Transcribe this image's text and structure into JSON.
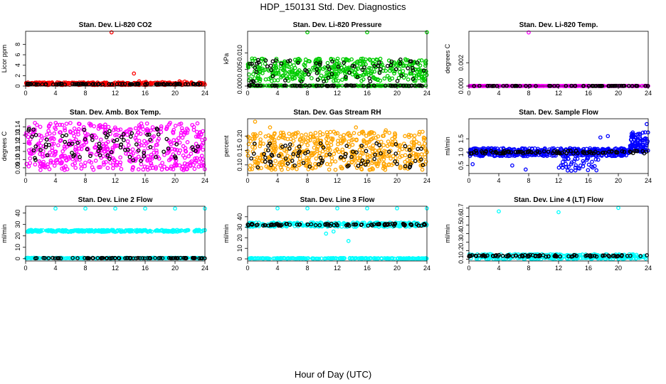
{
  "figure": {
    "title": "HDP_150131  Std. Dev. Diagnostics",
    "xlabel": "Hour of Day (UTC)"
  },
  "chart_data": [
    {
      "type": "scatter",
      "title": "Stan. Dev. Li-820 CO2",
      "ylabel": "Licor ppm",
      "xlim": [
        0,
        24
      ],
      "ylim": [
        0,
        10.5
      ],
      "xticks": [
        0,
        4,
        8,
        12,
        16,
        20,
        24
      ],
      "yticks": [
        0,
        2,
        4,
        6,
        8
      ],
      "ytick_labels": [
        "0",
        "2",
        "4",
        "6",
        "8"
      ],
      "color": "#ff0000",
      "series": [
        {
          "name": "main",
          "pattern": "band",
          "x": [
            0,
            24
          ],
          "y_range": [
            0.2,
            0.7
          ],
          "count": 320
        },
        {
          "name": "outliers",
          "pattern": "points",
          "x": [
            11.5,
            14.5,
            15.2,
            16.1,
            18.3,
            20.6,
            21.3,
            22.2
          ],
          "y": [
            10.3,
            2.4,
            0.9,
            0.8,
            0.75,
            0.9,
            0.85,
            0.7
          ]
        },
        {
          "name": "reference",
          "pattern": "band",
          "x": [
            0,
            24
          ],
          "y_range": [
            0.3,
            0.45
          ],
          "count": 90,
          "color": "#000000"
        }
      ]
    },
    {
      "type": "scatter",
      "title": "Stan. Dev. Li-820 Pressure",
      "ylabel": "kPa",
      "xlim": [
        0,
        24
      ],
      "ylim": [
        0,
        0.0165
      ],
      "xticks": [
        0,
        4,
        8,
        12,
        16,
        20,
        24
      ],
      "yticks": [
        0,
        0.005,
        0.01
      ],
      "ytick_labels": [
        "0.000",
        "0.005",
        "0.010"
      ],
      "color": "#00cc00",
      "series": [
        {
          "name": "baseline",
          "pattern": "band",
          "x": [
            0,
            24
          ],
          "y_range": [
            0,
            0.0002
          ],
          "count": 160
        },
        {
          "name": "main",
          "pattern": "band",
          "x": [
            0,
            24
          ],
          "y_range": [
            0.0015,
            0.0083
          ],
          "count": 420
        },
        {
          "name": "outliers",
          "pattern": "points",
          "x": [
            8.0,
            16.0,
            24.0
          ],
          "y": [
            0.0162,
            0.0162,
            0.0162
          ]
        },
        {
          "name": "reference",
          "pattern": "band",
          "x": [
            0,
            24
          ],
          "y_range": [
            0.0012,
            0.008
          ],
          "count": 70,
          "color": "#000000"
        },
        {
          "name": "reference-base",
          "pattern": "band",
          "x": [
            0,
            24
          ],
          "y_range": [
            0,
            0.0002
          ],
          "count": 60,
          "color": "#000000"
        }
      ]
    },
    {
      "type": "scatter",
      "title": "Stan. Dev. Li-820 Temp.",
      "ylabel": "degrees C",
      "xlim": [
        0,
        24
      ],
      "ylim": [
        0,
        0.0047
      ],
      "xticks": [
        0,
        4,
        8,
        12,
        16,
        20,
        24
      ],
      "yticks": [
        0,
        0.002
      ],
      "ytick_labels": [
        "0.000",
        "0.002"
      ],
      "color": "#ff00ff",
      "series": [
        {
          "name": "baseline",
          "pattern": "band",
          "x": [
            0,
            24
          ],
          "y_range": [
            0,
            2e-05
          ],
          "count": 300
        },
        {
          "name": "outliers",
          "pattern": "points",
          "x": [
            8.0
          ],
          "y": [
            0.0046
          ]
        },
        {
          "name": "reference",
          "pattern": "band",
          "x": [
            0,
            24
          ],
          "y_range": [
            0,
            2e-05
          ],
          "count": 60,
          "color": "#000000"
        }
      ]
    },
    {
      "type": "scatter",
      "title": "Stan. Dev. Amb. Box Temp.",
      "ylabel": "degrees C",
      "xlim": [
        0,
        24
      ],
      "ylim": [
        0.083,
        0.15
      ],
      "xticks": [
        0,
        4,
        8,
        12,
        16,
        20,
        24
      ],
      "yticks": [
        0.09,
        0.1,
        0.11,
        0.12,
        0.13,
        0.14
      ],
      "ytick_labels": [
        "0.09",
        "0.10",
        "0.11",
        "0.12",
        "0.13",
        "0.14"
      ],
      "color": "#ff00ff",
      "series": [
        {
          "name": "main",
          "pattern": "band",
          "x": [
            0,
            24
          ],
          "y_range": [
            0.087,
            0.145
          ],
          "count": 520
        },
        {
          "name": "reference",
          "pattern": "band",
          "x": [
            0,
            24
          ],
          "y_range": [
            0.097,
            0.138
          ],
          "count": 80,
          "color": "#000000"
        }
      ]
    },
    {
      "type": "scatter",
      "title": "Stan. Dev. Gas Stream RH",
      "ylabel": "percent",
      "xlim": [
        0,
        24
      ],
      "ylim": [
        0.07,
        0.26
      ],
      "xticks": [
        0,
        4,
        8,
        12,
        16,
        20,
        24
      ],
      "yticks": [
        0.1,
        0.15,
        0.2
      ],
      "ytick_labels": [
        "0.10",
        "0.15",
        "0.20"
      ],
      "color": "#ffa500",
      "series": [
        {
          "name": "main",
          "pattern": "band",
          "x": [
            0,
            24
          ],
          "y_range": [
            0.082,
            0.215
          ],
          "count": 520
        },
        {
          "name": "outliers",
          "pattern": "points",
          "x": [
            1.0,
            3.0,
            14.5,
            18.5
          ],
          "y": [
            0.25,
            0.23,
            0.23,
            0.22
          ]
        },
        {
          "name": "reference",
          "pattern": "band",
          "x": [
            0,
            24
          ],
          "y_range": [
            0.09,
            0.175
          ],
          "count": 80,
          "color": "#000000"
        }
      ]
    },
    {
      "type": "scatter",
      "title": "Stan. Dev. Sample Flow",
      "ylabel": "ml/min",
      "xlim": [
        0,
        24
      ],
      "ylim": [
        0.2,
        2.25
      ],
      "xticks": [
        0,
        4,
        8,
        12,
        16,
        20,
        24
      ],
      "yticks": [
        0.5,
        1.0,
        1.5
      ],
      "ytick_labels": [
        "0.5",
        "1.0",
        "1.5"
      ],
      "color": "#0000ff",
      "series": [
        {
          "name": "main",
          "pattern": "band",
          "x": [
            0,
            21.5
          ],
          "y_range": [
            0.85,
            1.15
          ],
          "count": 480
        },
        {
          "name": "tail",
          "pattern": "band",
          "x": [
            21.5,
            24
          ],
          "y_range": [
            1.0,
            1.75
          ],
          "count": 90
        },
        {
          "name": "dips",
          "pattern": "band",
          "x": [
            12,
            18
          ],
          "y_range": [
            0.3,
            0.8
          ],
          "count": 40
        },
        {
          "name": "outliers",
          "pattern": "points",
          "x": [
            0.5,
            5.8,
            7.6,
            17.6,
            18.6,
            23.8
          ],
          "y": [
            0.55,
            0.5,
            0.35,
            1.55,
            1.6,
            2.05
          ]
        },
        {
          "name": "reference",
          "pattern": "band",
          "x": [
            0,
            24
          ],
          "y_range": [
            0.95,
            1.05
          ],
          "count": 90,
          "color": "#000000"
        }
      ]
    },
    {
      "type": "scatter",
      "title": "Stan. Dev. Line 2 Flow",
      "ylabel": "ml/min",
      "xlim": [
        0,
        24
      ],
      "ylim": [
        -2,
        46
      ],
      "xticks": [
        0,
        4,
        8,
        12,
        16,
        20,
        24
      ],
      "yticks": [
        0,
        10,
        20,
        30,
        40
      ],
      "ytick_labels": [
        "0",
        "10",
        "20",
        "30",
        "40"
      ],
      "color": "#00ffff",
      "series": [
        {
          "name": "main",
          "pattern": "band",
          "x": [
            0,
            24
          ],
          "y_range": [
            23.5,
            25.2
          ],
          "count": 280
        },
        {
          "name": "baseline",
          "pattern": "band",
          "x": [
            0,
            24
          ],
          "y_range": [
            0.2,
            0.8
          ],
          "count": 240
        },
        {
          "name": "outliers",
          "pattern": "points",
          "x": [
            4.0,
            8.0,
            12.0,
            16.0,
            20.0,
            24.0
          ],
          "y": [
            44,
            44,
            44,
            44,
            44,
            44
          ]
        },
        {
          "name": "reference",
          "pattern": "band",
          "x": [
            0,
            24
          ],
          "y_range": [
            0.3,
            0.7
          ],
          "count": 90,
          "color": "#000000"
        }
      ]
    },
    {
      "type": "scatter",
      "title": "Stan. Dev. Line 3 Flow",
      "ylabel": "ml/min",
      "xlim": [
        0,
        24
      ],
      "ylim": [
        -2,
        50
      ],
      "xticks": [
        0,
        4,
        8,
        12,
        16,
        20,
        24
      ],
      "yticks": [
        0,
        10,
        20,
        30,
        40
      ],
      "ytick_labels": [
        "0",
        "10",
        "20",
        "30",
        "40"
      ],
      "color": "#00ffff",
      "series": [
        {
          "name": "main",
          "pattern": "band",
          "x": [
            0,
            24
          ],
          "y_range": [
            30.5,
            34.5
          ],
          "count": 280
        },
        {
          "name": "baseline",
          "pattern": "band",
          "x": [
            0,
            24
          ],
          "y_range": [
            0.1,
            0.8
          ],
          "count": 240
        },
        {
          "name": "outliers",
          "pattern": "points",
          "x": [
            4.0,
            8.0,
            12.0,
            16.0,
            20.0,
            24.0,
            10.5,
            11.5,
            13.5
          ],
          "y": [
            48,
            48,
            48,
            48,
            48,
            48,
            24,
            26,
            17
          ]
        },
        {
          "name": "reference",
          "pattern": "band",
          "x": [
            0,
            24
          ],
          "y_range": [
            31.5,
            33.5
          ],
          "count": 90,
          "color": "#000000"
        }
      ]
    },
    {
      "type": "scatter",
      "title": "Stan. Dev. Line 4 (LT) Flow",
      "ylabel": "ml/min",
      "xlim": [
        0,
        24
      ],
      "ylim": [
        0.08,
        0.72
      ],
      "xticks": [
        0,
        4,
        8,
        12,
        16,
        20,
        24
      ],
      "yticks": [
        0.1,
        0.2,
        0.3,
        0.4,
        0.5,
        0.6,
        0.7
      ],
      "ytick_labels": [
        "0.1",
        "0.2",
        "0.3",
        "0.4",
        "0.5",
        "0.6",
        "0.7"
      ],
      "color": "#00ffff",
      "series": [
        {
          "name": "main",
          "pattern": "band",
          "x": [
            0,
            24
          ],
          "y_range": [
            0.1,
            0.16
          ],
          "count": 320
        },
        {
          "name": "outliers",
          "pattern": "points",
          "x": [
            4.0,
            12.0,
            20.0
          ],
          "y": [
            0.66,
            0.65,
            0.7
          ]
        },
        {
          "name": "reference",
          "pattern": "band",
          "x": [
            0,
            24
          ],
          "y_range": [
            0.13,
            0.15
          ],
          "count": 90,
          "color": "#000000"
        }
      ]
    }
  ]
}
